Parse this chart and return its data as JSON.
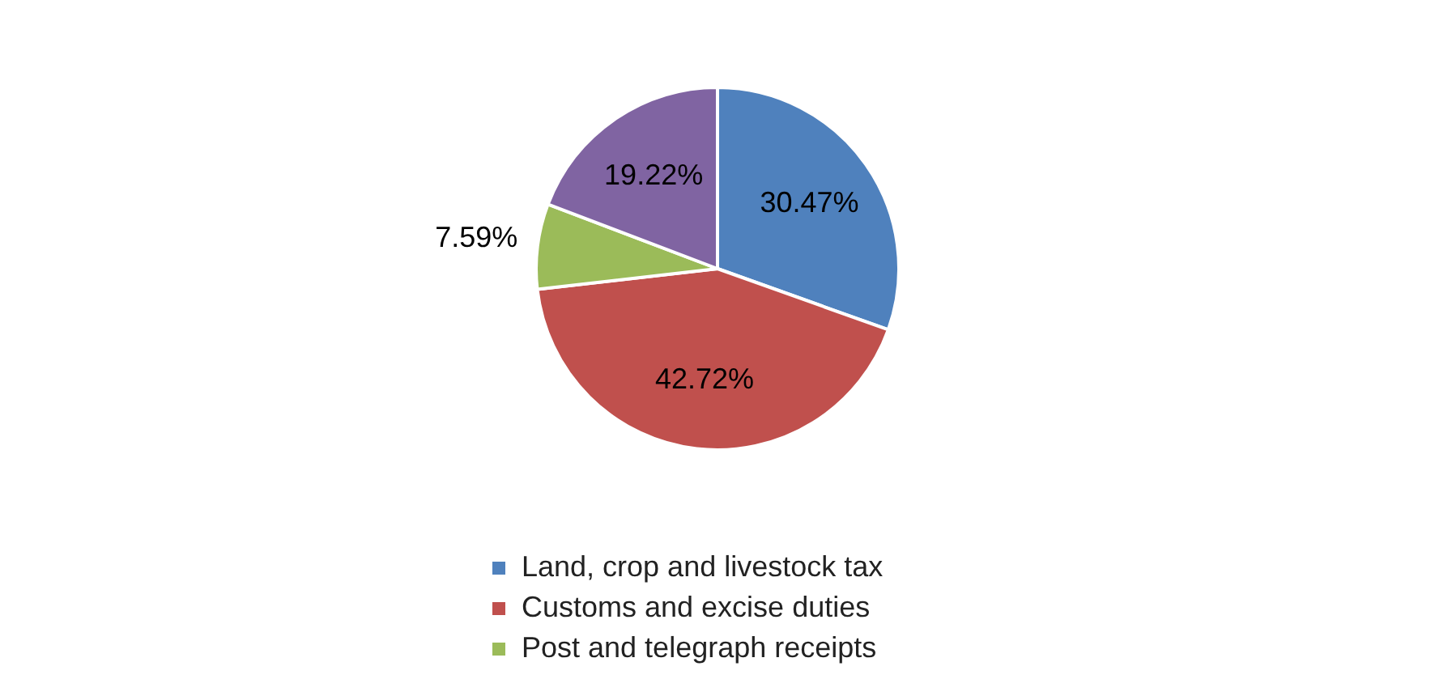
{
  "chart_data": {
    "type": "pie",
    "categories": [
      "Land, crop and livestock tax",
      "Customs and excise duties",
      "Post and telegraph receipts",
      null
    ],
    "values": [
      30.47,
      42.72,
      7.59,
      19.22
    ],
    "value_labels": [
      "30.47%",
      "42.72%",
      "7.59%",
      "19.22%"
    ],
    "colors": [
      "#4f81bd",
      "#c0504d",
      "#9bbb59",
      "#8064a2"
    ],
    "legend": "bottom"
  }
}
